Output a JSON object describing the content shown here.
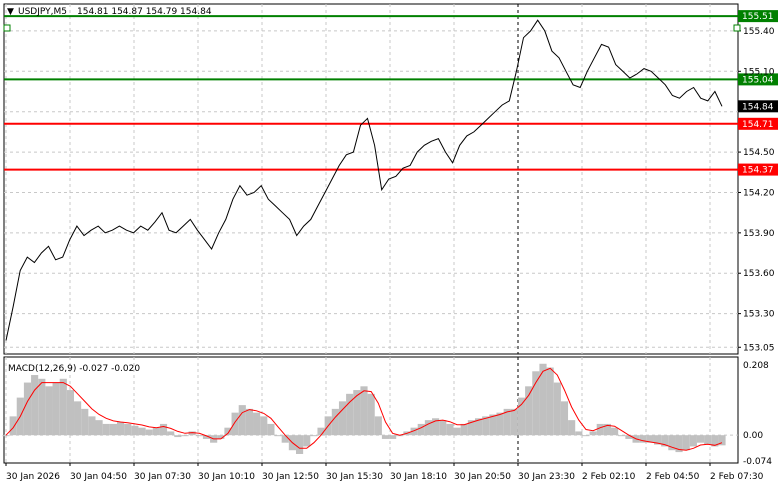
{
  "header": {
    "symbol_timeframe": "USDJPY,M5",
    "ohlc": "154.81 154.87 154.79 154.84"
  },
  "macd": {
    "label": "MACD(12,26,9) -0.027 -0.020"
  },
  "colors": {
    "green_level": "#008000",
    "red_level": "#ff0000",
    "price_line": "#000000",
    "histogram": "#c0c0c0",
    "signal": "#ff0000",
    "current_price_badge": "#000000",
    "grid": "#c8c8c8"
  },
  "chart_data": [
    {
      "type": "line",
      "title": "USDJPY,M5",
      "ylim": [
        153.0,
        155.6
      ],
      "y_ticks": [
        "155.40",
        "155.10",
        "154.80",
        "154.50",
        "154.20",
        "153.90",
        "153.60",
        "153.30",
        "153.05"
      ],
      "x_ticks": [
        "30 Jan 2026",
        "30 Jan 04:50",
        "30 Jan 07:30",
        "30 Jan 10:10",
        "30 Jan 12:50",
        "30 Jan 15:30",
        "30 Jan 18:10",
        "30 Jan 20:50",
        "30 Jan 23:30",
        "2 Feb 02:10",
        "2 Feb 04:50",
        "2 Feb 07:30"
      ],
      "grid": true,
      "series": [
        {
          "values": [
            153.1,
            153.35,
            153.62,
            153.72,
            153.68,
            153.75,
            153.8,
            153.7,
            153.72,
            153.85,
            153.95,
            153.88,
            153.92,
            153.95,
            153.9,
            153.92,
            153.95,
            153.92,
            153.9,
            153.95,
            153.92,
            153.98,
            154.05,
            153.92,
            153.9,
            153.95,
            154.0,
            153.92,
            153.85,
            153.78,
            153.9,
            154.0,
            154.15,
            154.25,
            154.18,
            154.2,
            154.25,
            154.15,
            154.1,
            154.05,
            154.0,
            153.88,
            153.95,
            154.0,
            154.1,
            154.2,
            154.3,
            154.4,
            154.48,
            154.5,
            154.7,
            154.75,
            154.55,
            154.22,
            154.3,
            154.32,
            154.38,
            154.4,
            154.5,
            154.55,
            154.58,
            154.6,
            154.5,
            154.42,
            154.55,
            154.62,
            154.65,
            154.7,
            154.75,
            154.8,
            154.85,
            154.88,
            155.1,
            155.35,
            155.4,
            155.48,
            155.4,
            155.25,
            155.2,
            155.1,
            155.0,
            154.98,
            155.1,
            155.2,
            155.3,
            155.28,
            155.15,
            155.1,
            155.05,
            155.08,
            155.12,
            155.1,
            155.05,
            155.0,
            154.92,
            154.9,
            154.95,
            154.98,
            154.9,
            154.88,
            154.95,
            154.84
          ]
        }
      ],
      "levels": [
        {
          "label": "155.51",
          "value": 155.51,
          "color": "green"
        },
        {
          "label": "155.04",
          "value": 155.04,
          "color": "green"
        },
        {
          "label": "154.71",
          "value": 154.71,
          "color": "red"
        },
        {
          "label": "154.37",
          "value": 154.37,
          "color": "red"
        }
      ],
      "current_price": {
        "label": "154.84",
        "value": 154.84
      },
      "vline_label": "30 Jan 23:30"
    },
    {
      "type": "bar",
      "title": "MACD(12,26,9)",
      "ylim": [
        -0.074,
        0.208
      ],
      "y_ticks": [
        "0.208",
        "0.00",
        "-0.074"
      ],
      "series": [
        {
          "name": "MACD",
          "values": [
            0.0,
            0.05,
            0.1,
            0.14,
            0.16,
            0.15,
            0.13,
            0.14,
            0.15,
            0.12,
            0.09,
            0.07,
            0.05,
            0.04,
            0.03,
            0.03,
            0.035,
            0.03,
            0.025,
            0.02,
            0.015,
            0.02,
            0.03,
            0.01,
            -0.005,
            0.0,
            0.01,
            0.0,
            -0.01,
            -0.02,
            -0.01,
            0.02,
            0.06,
            0.08,
            0.07,
            0.06,
            0.05,
            0.03,
            0.0,
            -0.02,
            -0.04,
            -0.05,
            -0.03,
            0.0,
            0.02,
            0.05,
            0.07,
            0.09,
            0.11,
            0.12,
            0.13,
            0.11,
            0.05,
            -0.01,
            -0.01,
            0.0,
            0.01,
            0.02,
            0.03,
            0.04,
            0.045,
            0.04,
            0.03,
            0.02,
            0.03,
            0.04,
            0.045,
            0.05,
            0.055,
            0.06,
            0.07,
            0.07,
            0.1,
            0.13,
            0.17,
            0.19,
            0.18,
            0.14,
            0.09,
            0.04,
            0.01,
            0.0,
            0.01,
            0.03,
            0.03,
            0.02,
            0.0,
            -0.01,
            -0.02,
            -0.02,
            -0.02,
            -0.025,
            -0.03,
            -0.04,
            -0.045,
            -0.04,
            -0.03,
            -0.02,
            -0.025,
            -0.03,
            -0.027
          ]
        },
        {
          "name": "Signal",
          "values": [
            0.0,
            0.02,
            0.05,
            0.09,
            0.12,
            0.14,
            0.14,
            0.14,
            0.14,
            0.13,
            0.11,
            0.09,
            0.07,
            0.055,
            0.045,
            0.038,
            0.035,
            0.033,
            0.03,
            0.027,
            0.022,
            0.02,
            0.023,
            0.018,
            0.01,
            0.005,
            0.007,
            0.005,
            -0.002,
            -0.01,
            -0.01,
            0.005,
            0.035,
            0.06,
            0.068,
            0.065,
            0.058,
            0.045,
            0.022,
            0.0,
            -0.02,
            -0.035,
            -0.035,
            -0.02,
            0.0,
            0.025,
            0.048,
            0.068,
            0.088,
            0.105,
            0.118,
            0.116,
            0.085,
            0.035,
            0.005,
            0.0,
            0.005,
            0.012,
            0.02,
            0.03,
            0.038,
            0.04,
            0.036,
            0.028,
            0.028,
            0.034,
            0.04,
            0.045,
            0.05,
            0.055,
            0.062,
            0.066,
            0.082,
            0.106,
            0.14,
            0.17,
            0.178,
            0.16,
            0.12,
            0.075,
            0.04,
            0.015,
            0.012,
            0.02,
            0.026,
            0.024,
            0.012,
            0.0,
            -0.01,
            -0.015,
            -0.018,
            -0.021,
            -0.025,
            -0.032,
            -0.038,
            -0.04,
            -0.035,
            -0.026,
            -0.024,
            -0.027,
            -0.02
          ]
        }
      ]
    }
  ]
}
